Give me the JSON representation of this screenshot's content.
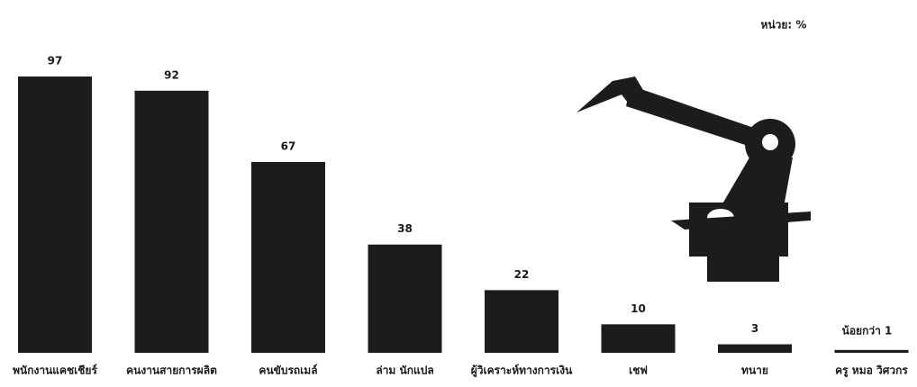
{
  "chart_data": {
    "type": "bar",
    "unit_label": "หน่วย: %",
    "categories": [
      "พนักงานแคชเชียร์",
      "คนงานสายการผลิต",
      "คนขับรถเมล์",
      "ล่าม นักแปล",
      "ผู้วิเคราะห์ทางการเงิน",
      "เชฟ",
      "ทนาย",
      "ครู หมอ วิศวกร"
    ],
    "values": [
      97,
      92,
      67,
      38,
      22,
      10,
      3,
      1
    ],
    "value_labels": [
      "97",
      "92",
      "67",
      "38",
      "22",
      "10",
      "3",
      "น้อยกว่า 1"
    ],
    "color": "#1c1c1c"
  }
}
